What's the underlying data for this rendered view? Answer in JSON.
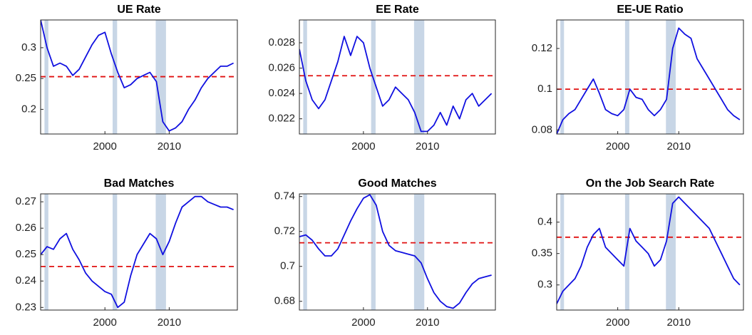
{
  "chart_data": [
    {
      "type": "line",
      "title": "UE Rate",
      "x": [
        1990,
        1991,
        1992,
        1993,
        1994,
        1995,
        1996,
        1997,
        1998,
        1999,
        2000,
        2001,
        2002,
        2003,
        2004,
        2005,
        2006,
        2007,
        2008,
        2009,
        2010,
        2011,
        2012,
        2013,
        2014,
        2015,
        2016,
        2017,
        2018,
        2019,
        2020
      ],
      "series": [
        {
          "color": "#1010e0",
          "values": [
            0.345,
            0.3,
            0.27,
            0.275,
            0.27,
            0.255,
            0.265,
            0.285,
            0.305,
            0.32,
            0.325,
            0.29,
            0.26,
            0.235,
            0.24,
            0.25,
            0.255,
            0.26,
            0.245,
            0.18,
            0.165,
            0.17,
            0.18,
            0.2,
            0.215,
            0.235,
            0.25,
            0.26,
            0.27,
            0.27,
            0.275
          ]
        }
      ],
      "reference_line": 0.253,
      "reference_color": "#e01010",
      "shaded_periods": [
        [
          1990.6,
          1991.2
        ],
        [
          2001.2,
          2001.9
        ],
        [
          2007.9,
          2009.5
        ]
      ],
      "shade_color": "#c8d6e6",
      "xlim": [
        1990,
        2020.6
      ],
      "xticks": [
        2000,
        2010
      ],
      "ylim": [
        0.16,
        0.345
      ],
      "yticks": [
        0.2,
        0.25,
        0.3
      ]
    },
    {
      "type": "line",
      "title": "EE Rate",
      "x": [
        1990,
        1991,
        1992,
        1993,
        1994,
        1995,
        1996,
        1997,
        1998,
        1999,
        2000,
        2001,
        2002,
        2003,
        2004,
        2005,
        2006,
        2007,
        2008,
        2009,
        2010,
        2011,
        2012,
        2013,
        2014,
        2015,
        2016,
        2017,
        2018,
        2019,
        2020
      ],
      "series": [
        {
          "color": "#1010e0",
          "values": [
            0.0275,
            0.025,
            0.0235,
            0.0228,
            0.0235,
            0.025,
            0.0265,
            0.0285,
            0.027,
            0.0285,
            0.028,
            0.026,
            0.0245,
            0.023,
            0.0235,
            0.0245,
            0.024,
            0.0235,
            0.0225,
            0.021,
            0.021,
            0.0215,
            0.0225,
            0.0215,
            0.023,
            0.022,
            0.0235,
            0.024,
            0.023,
            0.0235,
            0.024
          ]
        }
      ],
      "reference_line": 0.0254,
      "reference_color": "#e01010",
      "shaded_periods": [
        [
          1990.6,
          1991.2
        ],
        [
          2001.2,
          2001.9
        ],
        [
          2007.9,
          2009.5
        ]
      ],
      "shade_color": "#c8d6e6",
      "xlim": [
        1990,
        2020.6
      ],
      "xticks": [
        2000,
        2010
      ],
      "ylim": [
        0.0208,
        0.0298
      ],
      "yticks": [
        0.022,
        0.024,
        0.026,
        0.028
      ]
    },
    {
      "type": "line",
      "title": "EE-UE Ratio",
      "x": [
        1990,
        1991,
        1992,
        1993,
        1994,
        1995,
        1996,
        1997,
        1998,
        1999,
        2000,
        2001,
        2002,
        2003,
        2004,
        2005,
        2006,
        2007,
        2008,
        2009,
        2010,
        2011,
        2012,
        2013,
        2014,
        2015,
        2016,
        2017,
        2018,
        2019,
        2020
      ],
      "series": [
        {
          "color": "#1010e0",
          "values": [
            0.078,
            0.085,
            0.088,
            0.09,
            0.095,
            0.1,
            0.105,
            0.098,
            0.09,
            0.088,
            0.087,
            0.09,
            0.1,
            0.096,
            0.095,
            0.09,
            0.087,
            0.09,
            0.095,
            0.12,
            0.13,
            0.127,
            0.125,
            0.115,
            0.11,
            0.105,
            0.1,
            0.095,
            0.09,
            0.087,
            0.085
          ]
        }
      ],
      "reference_line": 0.1,
      "reference_color": "#e01010",
      "shaded_periods": [
        [
          1990.6,
          1991.2
        ],
        [
          2001.2,
          2001.9
        ],
        [
          2007.9,
          2009.5
        ]
      ],
      "shade_color": "#c8d6e6",
      "xlim": [
        1990,
        2020.6
      ],
      "xticks": [
        2000,
        2010
      ],
      "ylim": [
        0.078,
        0.134
      ],
      "yticks": [
        0.08,
        0.1,
        0.12
      ]
    },
    {
      "type": "line",
      "title": "Bad Matches",
      "x": [
        1990,
        1991,
        1992,
        1993,
        1994,
        1995,
        1996,
        1997,
        1998,
        1999,
        2000,
        2001,
        2002,
        2003,
        2004,
        2005,
        2006,
        2007,
        2008,
        2009,
        2010,
        2011,
        2012,
        2013,
        2014,
        2015,
        2016,
        2017,
        2018,
        2019,
        2020
      ],
      "series": [
        {
          "color": "#1010e0",
          "values": [
            0.25,
            0.253,
            0.252,
            0.256,
            0.258,
            0.252,
            0.248,
            0.243,
            0.24,
            0.238,
            0.236,
            0.235,
            0.23,
            0.232,
            0.242,
            0.25,
            0.254,
            0.258,
            0.256,
            0.25,
            0.255,
            0.262,
            0.268,
            0.27,
            0.272,
            0.272,
            0.27,
            0.269,
            0.268,
            0.268,
            0.267
          ]
        }
      ],
      "reference_line": 0.2455,
      "reference_color": "#e01010",
      "shaded_periods": [
        [
          1990.6,
          1991.2
        ],
        [
          2001.2,
          2001.9
        ],
        [
          2007.9,
          2009.5
        ]
      ],
      "shade_color": "#c8d6e6",
      "xlim": [
        1990,
        2020.6
      ],
      "xticks": [
        2000,
        2010
      ],
      "ylim": [
        0.229,
        0.273
      ],
      "yticks": [
        0.23,
        0.24,
        0.25,
        0.26,
        0.27
      ]
    },
    {
      "type": "line",
      "title": "Good Matches",
      "x": [
        1990,
        1991,
        1992,
        1993,
        1994,
        1995,
        1996,
        1997,
        1998,
        1999,
        2000,
        2001,
        2002,
        2003,
        2004,
        2005,
        2006,
        2007,
        2008,
        2009,
        2010,
        2011,
        2012,
        2013,
        2014,
        2015,
        2016,
        2017,
        2018,
        2019,
        2020
      ],
      "series": [
        {
          "color": "#1010e0",
          "values": [
            0.717,
            0.718,
            0.715,
            0.71,
            0.706,
            0.706,
            0.71,
            0.718,
            0.726,
            0.733,
            0.739,
            0.741,
            0.735,
            0.72,
            0.712,
            0.709,
            0.708,
            0.707,
            0.706,
            0.702,
            0.693,
            0.685,
            0.68,
            0.677,
            0.676,
            0.679,
            0.685,
            0.69,
            0.693,
            0.694,
            0.695
          ]
        }
      ],
      "reference_line": 0.7135,
      "reference_color": "#e01010",
      "shaded_periods": [
        [
          1990.6,
          1991.2
        ],
        [
          2001.2,
          2001.9
        ],
        [
          2007.9,
          2009.5
        ]
      ],
      "shade_color": "#c8d6e6",
      "xlim": [
        1990,
        2020.6
      ],
      "xticks": [
        2000,
        2010
      ],
      "ylim": [
        0.675,
        0.7415
      ],
      "yticks": [
        0.68,
        0.7,
        0.72,
        0.74
      ]
    },
    {
      "type": "line",
      "title": "On the Job Search Rate",
      "x": [
        1990,
        1991,
        1992,
        1993,
        1994,
        1995,
        1996,
        1997,
        1998,
        1999,
        2000,
        2001,
        2002,
        2003,
        2004,
        2005,
        2006,
        2007,
        2008,
        2009,
        2010,
        2011,
        2012,
        2013,
        2014,
        2015,
        2016,
        2017,
        2018,
        2019,
        2020
      ],
      "series": [
        {
          "color": "#1010e0",
          "values": [
            0.27,
            0.29,
            0.3,
            0.31,
            0.33,
            0.36,
            0.38,
            0.39,
            0.36,
            0.35,
            0.34,
            0.33,
            0.39,
            0.37,
            0.36,
            0.35,
            0.33,
            0.34,
            0.37,
            0.43,
            0.44,
            0.43,
            0.42,
            0.41,
            0.4,
            0.39,
            0.37,
            0.35,
            0.33,
            0.31,
            0.3
          ]
        }
      ],
      "reference_line": 0.376,
      "reference_color": "#e01010",
      "shaded_periods": [
        [
          1990.6,
          1991.2
        ],
        [
          2001.2,
          2001.9
        ],
        [
          2007.9,
          2009.5
        ]
      ],
      "shade_color": "#c8d6e6",
      "xlim": [
        1990,
        2020.6
      ],
      "xticks": [
        2000,
        2010
      ],
      "ylim": [
        0.26,
        0.445
      ],
      "yticks": [
        0.3,
        0.35,
        0.4
      ]
    }
  ]
}
